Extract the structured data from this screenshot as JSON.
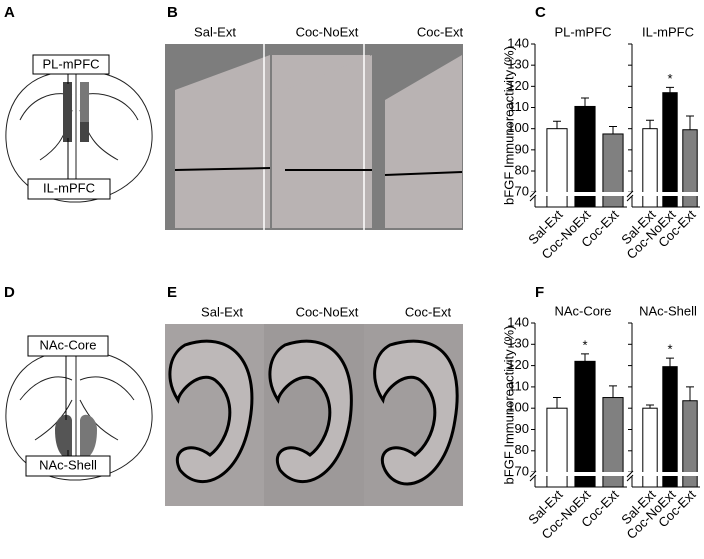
{
  "panel_letters": [
    "A",
    "B",
    "C",
    "D",
    "E",
    "F"
  ],
  "diagrams": [
    {
      "labels": [
        "PL-mPFC",
        "IL-mPFC"
      ]
    },
    {
      "labels": [
        "NAc-Core",
        "NAc-Shell"
      ]
    }
  ],
  "image_rows": [
    {
      "labels": [
        "Sal-Ext",
        "Coc-NoExt",
        "Coc-Ext"
      ]
    },
    {
      "labels": [
        "Sal-Ext",
        "Coc-NoExt",
        "Coc-Ext"
      ]
    }
  ],
  "chart_data": [
    {
      "type": "bar",
      "title": "PL-mPFC",
      "y_label": "bFGF Immunoreactivity (%)",
      "tick_labels": true,
      "categories": [
        "Sal-Ext",
        "Coc-NoExt",
        "Coc-Ext"
      ],
      "values": [
        100,
        110.5,
        97.5
      ],
      "errors": [
        3.5,
        4,
        3.5
      ],
      "colors": [
        "#ffffff",
        "#000000",
        "#808080"
      ],
      "ylim": [
        63,
        140
      ],
      "yticks": [
        70,
        80,
        90,
        100,
        110,
        120,
        130,
        140
      ]
    },
    {
      "type": "bar",
      "title": "IL-mPFC",
      "tick_labels": false,
      "categories": [
        "Sal-Ext",
        "Coc-NoExt",
        "Coc-Ext"
      ],
      "values": [
        100,
        117,
        99.5
      ],
      "errors": [
        4,
        2.5,
        6.5
      ],
      "colors": [
        "#ffffff",
        "#000000",
        "#808080"
      ],
      "ylim": [
        63,
        140
      ],
      "yticks": [
        70,
        80,
        90,
        100,
        110,
        120,
        130,
        140
      ],
      "annotation": {
        "index": 1,
        "text": "*"
      }
    },
    {
      "type": "bar",
      "title": "NAc-Core",
      "y_label": "bFGF Immunoreactivity (%)",
      "tick_labels": true,
      "categories": [
        "Sal-Ext",
        "Coc-NoExt",
        "Coc-Ext"
      ],
      "values": [
        100,
        122,
        105
      ],
      "errors": [
        5,
        3.5,
        5.5
      ],
      "colors": [
        "#ffffff",
        "#000000",
        "#808080"
      ],
      "ylim": [
        63,
        140
      ],
      "yticks": [
        70,
        80,
        90,
        100,
        110,
        120,
        130,
        140
      ],
      "annotation": {
        "index": 1,
        "text": "*"
      }
    },
    {
      "type": "bar",
      "title": "NAc-Shell",
      "tick_labels": false,
      "categories": [
        "Sal-Ext",
        "Coc-NoExt",
        "Coc-Ext"
      ],
      "values": [
        100,
        119.5,
        103.5
      ],
      "errors": [
        1.5,
        4,
        6.5
      ],
      "colors": [
        "#ffffff",
        "#000000",
        "#808080"
      ],
      "ylim": [
        63,
        140
      ],
      "yticks": [
        70,
        80,
        90,
        100,
        110,
        120,
        130,
        140
      ],
      "annotation": {
        "index": 1,
        "text": "*"
      }
    }
  ]
}
